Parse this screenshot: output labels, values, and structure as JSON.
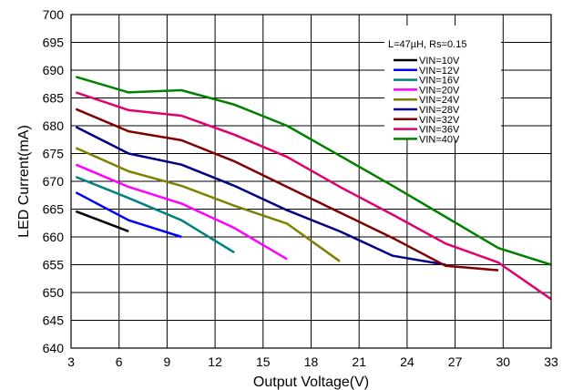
{
  "chart_data": {
    "type": "line",
    "xlabel": "Output Voltage(V)",
    "ylabel": "LED Current(mA)",
    "xlim": [
      3,
      33
    ],
    "ylim": [
      640,
      700
    ],
    "xticks": [
      3,
      6,
      9,
      12,
      15,
      18,
      21,
      24,
      27,
      30,
      33
    ],
    "yticks": [
      640,
      645,
      650,
      655,
      660,
      665,
      670,
      675,
      680,
      685,
      690,
      695,
      700
    ],
    "grid": true,
    "legend_title": "L=47µH, Rs=0.15",
    "legend_placement": "top-right",
    "series": [
      {
        "name": "VIN=10V",
        "color": "#000000",
        "x": [
          3.3,
          6.6
        ],
        "y": [
          664.6,
          661.0
        ]
      },
      {
        "name": "VIN=12V",
        "color": "#0000ff",
        "x": [
          3.3,
          6.6,
          9.9
        ],
        "y": [
          668.0,
          663.0,
          660.0
        ]
      },
      {
        "name": "VIN=16V",
        "color": "#008080",
        "x": [
          3.3,
          6.6,
          9.9,
          13.2
        ],
        "y": [
          670.8,
          667.0,
          663.0,
          657.2
        ]
      },
      {
        "name": "VIN=20V",
        "color": "#ff00ff",
        "x": [
          3.3,
          6.6,
          9.9,
          13.2,
          16.5
        ],
        "y": [
          673.0,
          669.0,
          666.0,
          661.6,
          656.0
        ]
      },
      {
        "name": "VIN=24V",
        "color": "#808000",
        "x": [
          3.3,
          6.6,
          9.9,
          13.2,
          16.5,
          19.8
        ],
        "y": [
          676.0,
          671.8,
          669.2,
          665.6,
          662.4,
          655.6
        ]
      },
      {
        "name": "VIN=28V",
        "color": "#000080",
        "x": [
          3.3,
          6.6,
          9.9,
          13.2,
          16.5,
          19.8,
          23.1,
          26.4
        ],
        "y": [
          679.8,
          675.0,
          673.0,
          669.2,
          664.8,
          661.0,
          656.6,
          655.0
        ]
      },
      {
        "name": "VIN=32V",
        "color": "#800000",
        "x": [
          3.3,
          6.6,
          9.9,
          13.2,
          16.5,
          19.8,
          23.1,
          26.4,
          29.7
        ],
        "y": [
          683.0,
          679.0,
          677.4,
          673.6,
          669.0,
          664.4,
          659.8,
          654.8,
          654.0
        ]
      },
      {
        "name": "VIN=36V",
        "color": "#e0006e",
        "x": [
          3.3,
          6.6,
          9.9,
          13.2,
          16.5,
          19.8,
          23.1,
          26.4,
          29.7,
          33.0
        ],
        "y": [
          686.0,
          682.8,
          681.8,
          678.4,
          674.4,
          669.0,
          664.0,
          658.8,
          655.4,
          648.8
        ]
      },
      {
        "name": "VIN=40V",
        "color": "#008000",
        "x": [
          3.3,
          6.6,
          9.9,
          13.2,
          16.5,
          19.8,
          23.1,
          26.4,
          29.7,
          33.0
        ],
        "y": [
          688.8,
          686.0,
          686.4,
          683.8,
          680.0,
          674.6,
          669.2,
          663.6,
          658.0,
          655.0
        ]
      }
    ]
  }
}
